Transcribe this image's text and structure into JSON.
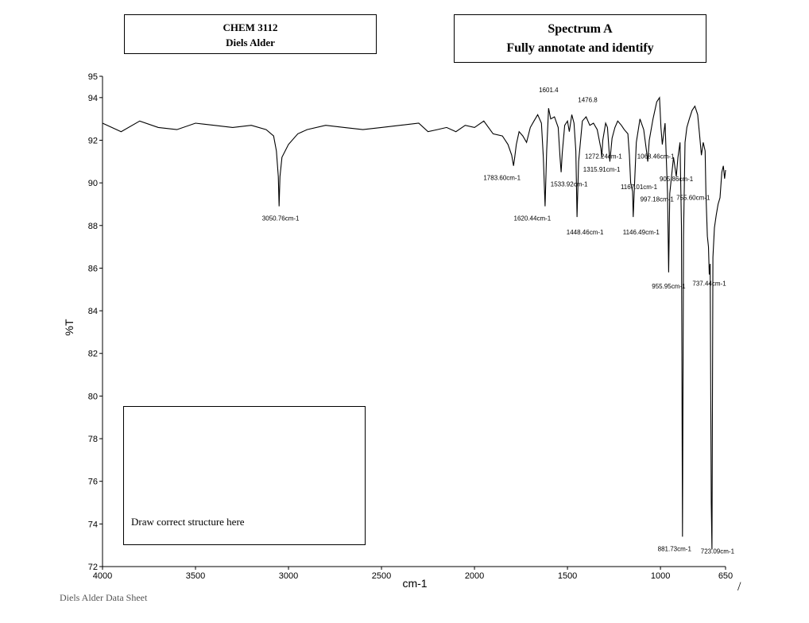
{
  "header": {
    "course": "CHEM 3112",
    "subject": "Diels Alder",
    "spectrum_title": "Spectrum A",
    "instruction": "Fully annotate and identify"
  },
  "structure_box": {
    "label": "Draw correct structure here"
  },
  "footer": {
    "text": "Diels Alder Data Sheet",
    "mark": "/"
  },
  "chart_data": {
    "type": "line",
    "title": "",
    "xlabel": "cm-1",
    "ylabel": "%T",
    "xlim": [
      4000,
      650
    ],
    "ylim": [
      72,
      95
    ],
    "x_ticks": [
      4000,
      3500,
      3000,
      2500,
      2000,
      1500,
      1000,
      650
    ],
    "y_ticks": [
      72,
      74,
      76,
      78,
      80,
      82,
      84,
      86,
      88,
      90,
      92,
      94,
      95
    ],
    "grid": false,
    "line_color": "#000000",
    "series": [
      {
        "x": [
          4000,
          3900,
          3800,
          3700,
          3600,
          3500,
          3400,
          3300,
          3200,
          3120,
          3080,
          3065,
          3055,
          3050.76,
          3046,
          3035,
          3000,
          2950,
          2900,
          2800,
          2700,
          2600,
          2500,
          2400,
          2300,
          2250,
          2200,
          2150,
          2100,
          2050,
          2000,
          1950,
          1900,
          1850,
          1820,
          1800,
          1790,
          1783.6,
          1775,
          1760,
          1740,
          1720,
          1700,
          1680,
          1660,
          1640,
          1630,
          1620.44,
          1612,
          1601.4,
          1590,
          1570,
          1550,
          1540,
          1533.92,
          1528,
          1515,
          1500,
          1490,
          1476.8,
          1465,
          1455,
          1448.46,
          1440,
          1420,
          1400,
          1380,
          1360,
          1340,
          1320,
          1315.91,
          1310,
          1295,
          1285,
          1272.24,
          1260,
          1245,
          1230,
          1210,
          1195,
          1175,
          1167.01,
          1160,
          1150,
          1146.49,
          1140,
          1130,
          1110,
          1090,
          1075,
          1068.46,
          1060,
          1040,
          1020,
          1005,
          997.18,
          990,
          975,
          962,
          955.95,
          950,
          930,
          915,
          905.86,
          895,
          887,
          881.73,
          876,
          868,
          858,
          845,
          830,
          815,
          800,
          790,
          780,
          770,
          760,
          755.6,
          748,
          742,
          737.44,
          733,
          727,
          723.09,
          718,
          710,
          700,
          690,
          680,
          670,
          662,
          655,
          650
        ],
        "y": [
          92.8,
          92.4,
          92.9,
          92.6,
          92.5,
          92.8,
          92.7,
          92.6,
          92.7,
          92.5,
          92.2,
          91.5,
          90.3,
          88.9,
          90.3,
          91.2,
          91.8,
          92.3,
          92.5,
          92.7,
          92.6,
          92.5,
          92.6,
          92.7,
          92.8,
          92.4,
          92.5,
          92.6,
          92.4,
          92.7,
          92.6,
          92.9,
          92.3,
          92.2,
          91.8,
          91.3,
          90.8,
          91.2,
          91.8,
          92.4,
          92.2,
          91.9,
          92.6,
          92.9,
          93.2,
          92.8,
          91.2,
          88.9,
          91.5,
          93.5,
          93.0,
          93.1,
          92.6,
          91.2,
          90.5,
          91.4,
          92.7,
          92.9,
          92.4,
          93.2,
          92.8,
          91.5,
          88.4,
          91.0,
          92.9,
          93.1,
          92.7,
          92.8,
          92.5,
          91.6,
          91.2,
          92.0,
          92.8,
          92.6,
          91.0,
          92.1,
          92.6,
          92.9,
          92.7,
          92.5,
          92.3,
          91.3,
          90.0,
          89.6,
          88.4,
          89.8,
          91.9,
          93.0,
          92.5,
          91.5,
          91.0,
          92.0,
          93.0,
          93.8,
          94.0,
          92.6,
          91.8,
          92.8,
          89.5,
          85.8,
          89.5,
          91.2,
          90.3,
          91.2,
          91.9,
          88.0,
          73.4,
          87.5,
          91.9,
          92.6,
          93.0,
          93.4,
          93.6,
          93.2,
          92.3,
          91.3,
          91.9,
          91.5,
          89.5,
          87.5,
          87.0,
          85.7,
          86.2,
          75.0,
          72.8,
          86.5,
          87.9,
          88.5,
          89.0,
          89.3,
          90.5,
          90.8,
          90.2,
          90.6
        ]
      }
    ],
    "peak_labels": [
      {
        "text": "3050.76cm-1",
        "x": 3050.76,
        "y": 88.9
      },
      {
        "text": "1783.60cm-1",
        "x": 1783.6,
        "y": 90.8
      },
      {
        "text": "1620.44cm-1",
        "x": 1620.44,
        "y": 88.9
      },
      {
        "text": "1601.4",
        "x": 1601.4,
        "y": 93.5
      },
      {
        "text": "1533.92cm-1",
        "x": 1533.92,
        "y": 90.5
      },
      {
        "text": "1476.8",
        "x": 1476.8,
        "y": 93.2
      },
      {
        "text": "1448.46cm-1",
        "x": 1448.46,
        "y": 88.4
      },
      {
        "text": "1315.91cm-1",
        "x": 1315.91,
        "y": 91.2
      },
      {
        "text": "1272.24cm-1",
        "x": 1272.24,
        "y": 91.0
      },
      {
        "text": "1167.01cm-1",
        "x": 1167.01,
        "y": 90.0
      },
      {
        "text": "1146.49cm-1",
        "x": 1146.49,
        "y": 88.4
      },
      {
        "text": "1068.46cm-1",
        "x": 1068.46,
        "y": 91.0
      },
      {
        "text": "997.18cm-1",
        "x": 997.18,
        "y": 89.5
      },
      {
        "text": "955.95cm-1",
        "x": 955.95,
        "y": 85.8
      },
      {
        "text": "905.86cm-1",
        "x": 905.86,
        "y": 90.3
      },
      {
        "text": "881.73cm-1",
        "x": 881.73,
        "y": 73.4
      },
      {
        "text": "755.60cm-1",
        "x": 755.6,
        "y": 89.5
      },
      {
        "text": "737.44cm-1",
        "x": 737.44,
        "y": 85.7
      },
      {
        "text": "723.09cm-1",
        "x": 723.09,
        "y": 72.8
      }
    ]
  }
}
